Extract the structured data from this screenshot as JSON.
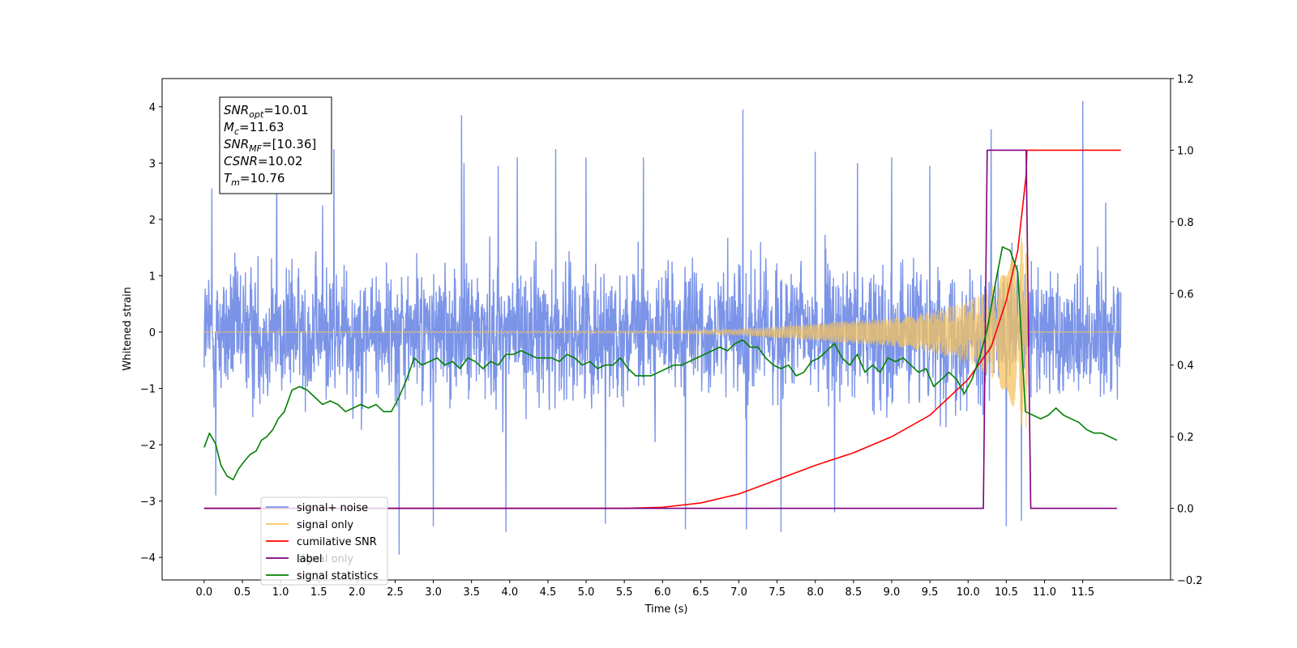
{
  "chart_data": {
    "type": "line",
    "xlabel": "Time (s)",
    "ylabel_left": "Whitened strain",
    "ylabel_right": "",
    "xlim": [
      -0.55,
      12.65
    ],
    "ylim_left": [
      -4.4,
      4.5
    ],
    "ylim_right": [
      -0.2,
      1.2
    ],
    "x_ticks": [
      "0.0",
      "0.5",
      "1.0",
      "1.5",
      "2.0",
      "2.5",
      "3.0",
      "3.5",
      "4.0",
      "4.5",
      "5.0",
      "5.5",
      "6.0",
      "6.5",
      "7.0",
      "7.5",
      "8.0",
      "8.5",
      "9.0",
      "9.5",
      "10.0",
      "10.5",
      "11.0",
      "11.5"
    ],
    "y_left_ticks": [
      "4",
      "3",
      "2",
      "1",
      "0",
      "−1",
      "−2",
      "−3",
      "−4"
    ],
    "y_right_ticks": [
      "1.2",
      "1.0",
      "0.8",
      "0.6",
      "0.4",
      "0.2",
      "0.0",
      "−0.2"
    ],
    "annotation": [
      {
        "main": "SNR",
        "sub": "opt",
        "value": "=10.01"
      },
      {
        "main": "M",
        "sub": "c",
        "value": "=11.63"
      },
      {
        "main": "SNR",
        "sub": "MF",
        "value": "=[10.36]"
      },
      {
        "main": "CSNR",
        "sub": "",
        "value": "=10.02"
      },
      {
        "main": "T",
        "sub": "m",
        "value": "=10.76"
      }
    ],
    "legend": [
      {
        "label": "signal+ noise",
        "color": "#7b94e8"
      },
      {
        "label": "signal only",
        "color": "#f5c45f"
      },
      {
        "label": "cumilative SNR",
        "color": "#ff0000"
      },
      {
        "label": "label",
        "color": "#800080"
      },
      {
        "label": "signal statistics",
        "color": "#008000"
      }
    ],
    "legend_overlap_texts": [
      "signal only",
      "signal statistics"
    ],
    "legend_placement": "lower-left",
    "series": [
      {
        "name": "signal+ noise",
        "axis": "left",
        "color": "#7b94e8",
        "x_range": [
          0.0,
          12.0
        ],
        "noise_band": [
          -2.0,
          2.0
        ],
        "spikes": [
          {
            "x": 0.1,
            "y": 2.55
          },
          {
            "x": 0.15,
            "y": -2.9
          },
          {
            "x": 0.95,
            "y": 3.25
          },
          {
            "x": 1.55,
            "y": 2.25
          },
          {
            "x": 1.7,
            "y": 3.25
          },
          {
            "x": 2.55,
            "y": 2.85
          },
          {
            "x": 2.55,
            "y": -3.95
          },
          {
            "x": 3.0,
            "y": -3.45
          },
          {
            "x": 3.37,
            "y": 3.85
          },
          {
            "x": 3.4,
            "y": 3.0
          },
          {
            "x": 3.85,
            "y": 2.95
          },
          {
            "x": 3.95,
            "y": -3.55
          },
          {
            "x": 4.1,
            "y": 3.1
          },
          {
            "x": 4.6,
            "y": 3.25
          },
          {
            "x": 5.0,
            "y": 3.1
          },
          {
            "x": 5.25,
            "y": -3.4
          },
          {
            "x": 5.75,
            "y": 3.1
          },
          {
            "x": 6.3,
            "y": -3.5
          },
          {
            "x": 7.05,
            "y": 3.95
          },
          {
            "x": 7.1,
            "y": -3.5
          },
          {
            "x": 7.55,
            "y": -3.55
          },
          {
            "x": 8.0,
            "y": 3.2
          },
          {
            "x": 8.25,
            "y": -3.2
          },
          {
            "x": 8.55,
            "y": 3.0
          },
          {
            "x": 9.0,
            "y": 3.1
          },
          {
            "x": 9.5,
            "y": 2.95
          },
          {
            "x": 10.3,
            "y": 3.6
          },
          {
            "x": 10.5,
            "y": -3.45
          },
          {
            "x": 10.7,
            "y": -3.35
          },
          {
            "x": 11.5,
            "y": 4.1
          },
          {
            "x": 11.8,
            "y": 2.3
          }
        ]
      },
      {
        "name": "signal only",
        "axis": "left",
        "color": "#f5c45f",
        "amplitude": [
          [
            0.0,
            0.0
          ],
          [
            6.0,
            0.02
          ],
          [
            7.0,
            0.05
          ],
          [
            8.0,
            0.15
          ],
          [
            9.0,
            0.25
          ],
          [
            9.5,
            0.35
          ],
          [
            10.0,
            0.55
          ],
          [
            10.3,
            0.8
          ],
          [
            10.5,
            1.1
          ],
          [
            10.65,
            1.5
          ],
          [
            10.76,
            1.9
          ],
          [
            10.78,
            0.0
          ],
          [
            12.0,
            0.0
          ]
        ]
      },
      {
        "name": "cumilative SNR",
        "axis": "right",
        "color": "#ff0000",
        "x": [
          0.0,
          5.5,
          6.0,
          6.5,
          7.0,
          7.5,
          8.0,
          8.5,
          9.0,
          9.5,
          10.0,
          10.3,
          10.5,
          10.65,
          10.76,
          10.77,
          12.0
        ],
        "y": [
          0.0,
          0.0,
          0.003,
          0.015,
          0.04,
          0.08,
          0.12,
          0.155,
          0.2,
          0.26,
          0.36,
          0.45,
          0.58,
          0.72,
          0.93,
          1.0,
          1.0
        ]
      },
      {
        "name": "label",
        "axis": "right",
        "color": "#800080",
        "x": [
          0.0,
          10.2,
          10.25,
          10.76,
          10.82,
          11.95
        ],
        "y": [
          0.0,
          0.0,
          1.0,
          1.0,
          0.0,
          0.0
        ]
      },
      {
        "name": "signal statistics",
        "axis": "right",
        "color": "#008000",
        "x": [
          0.0,
          0.07,
          0.15,
          0.22,
          0.3,
          0.38,
          0.45,
          0.52,
          0.6,
          0.68,
          0.75,
          0.82,
          0.9,
          0.97,
          1.05,
          1.15,
          1.25,
          1.35,
          1.45,
          1.55,
          1.65,
          1.75,
          1.85,
          1.95,
          2.05,
          2.15,
          2.25,
          2.35,
          2.45,
          2.55,
          2.65,
          2.75,
          2.85,
          2.95,
          3.05,
          3.15,
          3.25,
          3.35,
          3.45,
          3.55,
          3.65,
          3.75,
          3.85,
          3.95,
          4.05,
          4.15,
          4.25,
          4.35,
          4.45,
          4.55,
          4.65,
          4.75,
          4.85,
          4.95,
          5.05,
          5.15,
          5.25,
          5.35,
          5.45,
          5.55,
          5.65,
          5.75,
          5.85,
          5.95,
          6.05,
          6.15,
          6.25,
          6.35,
          6.45,
          6.55,
          6.65,
          6.75,
          6.85,
          6.95,
          7.05,
          7.15,
          7.25,
          7.35,
          7.45,
          7.55,
          7.65,
          7.75,
          7.85,
          7.95,
          8.05,
          8.15,
          8.25,
          8.35,
          8.45,
          8.55,
          8.65,
          8.75,
          8.85,
          8.95,
          9.05,
          9.15,
          9.25,
          9.35,
          9.45,
          9.55,
          9.65,
          9.75,
          9.85,
          9.95,
          10.05,
          10.15,
          10.25,
          10.35,
          10.45,
          10.55,
          10.65,
          10.75,
          10.85,
          10.95,
          11.05,
          11.15,
          11.25,
          11.35,
          11.45,
          11.55,
          11.65,
          11.75,
          11.85,
          11.95
        ],
        "y": [
          0.17,
          0.21,
          0.18,
          0.12,
          0.09,
          0.08,
          0.11,
          0.13,
          0.15,
          0.16,
          0.19,
          0.2,
          0.22,
          0.25,
          0.27,
          0.33,
          0.34,
          0.33,
          0.31,
          0.29,
          0.3,
          0.29,
          0.27,
          0.28,
          0.29,
          0.28,
          0.29,
          0.27,
          0.27,
          0.31,
          0.36,
          0.42,
          0.4,
          0.41,
          0.42,
          0.4,
          0.41,
          0.39,
          0.42,
          0.41,
          0.39,
          0.41,
          0.4,
          0.43,
          0.43,
          0.44,
          0.43,
          0.42,
          0.42,
          0.42,
          0.41,
          0.43,
          0.42,
          0.4,
          0.41,
          0.39,
          0.4,
          0.4,
          0.42,
          0.39,
          0.37,
          0.37,
          0.37,
          0.38,
          0.39,
          0.4,
          0.4,
          0.41,
          0.42,
          0.43,
          0.44,
          0.45,
          0.44,
          0.46,
          0.47,
          0.45,
          0.45,
          0.42,
          0.4,
          0.39,
          0.4,
          0.37,
          0.38,
          0.41,
          0.42,
          0.44,
          0.46,
          0.42,
          0.4,
          0.43,
          0.38,
          0.4,
          0.38,
          0.42,
          0.41,
          0.42,
          0.4,
          0.38,
          0.39,
          0.34,
          0.36,
          0.38,
          0.36,
          0.32,
          0.36,
          0.42,
          0.5,
          0.62,
          0.73,
          0.72,
          0.66,
          0.27,
          0.26,
          0.25,
          0.26,
          0.28,
          0.26,
          0.25,
          0.24,
          0.22,
          0.21,
          0.21,
          0.2,
          0.19
        ]
      }
    ]
  }
}
